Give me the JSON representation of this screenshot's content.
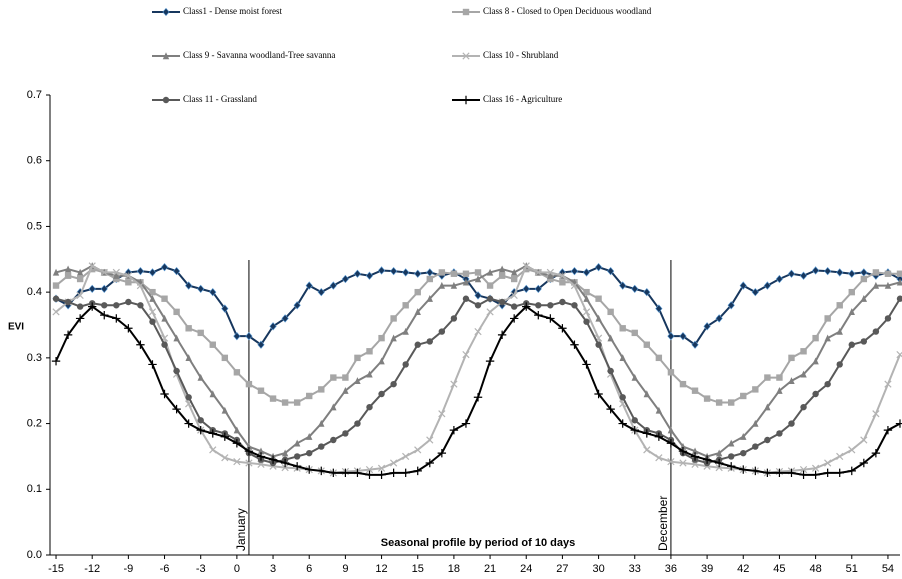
{
  "chart_data": {
    "type": "line",
    "ylabel": "EVI",
    "xlabel": "Seasonal profile by period  of 10 days",
    "annotations": [
      {
        "text": "January",
        "x": 1
      },
      {
        "text": "December",
        "x": 36
      }
    ],
    "xlim": [
      -15.5,
      55
    ],
    "ylim": [
      0,
      0.7
    ],
    "xticks": [
      -15,
      -12,
      -9,
      -6,
      -3,
      0,
      3,
      6,
      9,
      12,
      15,
      18,
      21,
      24,
      27,
      30,
      33,
      36,
      39,
      42,
      45,
      48,
      51,
      54
    ],
    "yticks": [
      {
        "value": 0,
        "label": "0.0"
      },
      0.1,
      0.2,
      0.3,
      0.4,
      0.5,
      0.6,
      0.7
    ],
    "grid": false,
    "x": [
      -15,
      -14,
      -13,
      -12,
      -11,
      -10,
      -9,
      -8,
      -7,
      -6,
      -5,
      -4,
      -3,
      -2,
      -1,
      0,
      1,
      2,
      3,
      4,
      5,
      6,
      7,
      8,
      9,
      10,
      11,
      12,
      13,
      14,
      15,
      16,
      17,
      18,
      19,
      20,
      21,
      22,
      23,
      24,
      25,
      26,
      27,
      28,
      29,
      30,
      31,
      32,
      33,
      34,
      35,
      36,
      37,
      38,
      39,
      40,
      41,
      42,
      43,
      44,
      45,
      46,
      47,
      48,
      49,
      50,
      51,
      52,
      53,
      54,
      55
    ],
    "series": [
      {
        "name": "Class1 - Dense moist forest",
        "color": "#17375e",
        "marker": "diamond",
        "values": [
          0.39,
          0.38,
          0.4,
          0.405,
          0.405,
          0.42,
          0.43,
          0.432,
          0.43,
          0.438,
          0.432,
          0.41,
          0.405,
          0.4,
          0.375,
          0.333,
          0.333,
          0.32,
          0.348,
          0.36,
          0.38,
          0.41,
          0.4,
          0.41,
          0.42,
          0.428,
          0.425,
          0.433,
          0.432,
          0.43,
          0.428,
          0.43,
          0.425,
          0.43,
          0.42,
          0.395,
          0.39,
          0.38,
          0.4,
          0.405,
          0.405,
          0.42,
          0.43,
          0.432,
          0.43,
          0.438,
          0.432,
          0.41,
          0.405,
          0.4,
          0.375,
          0.333,
          0.333,
          0.32,
          0.348,
          0.36,
          0.38,
          0.41,
          0.4,
          0.41,
          0.42,
          0.428,
          0.425,
          0.433,
          0.432,
          0.43,
          0.428,
          0.43,
          0.425,
          0.43,
          0.42
        ]
      },
      {
        "name": "Class 8 - Closed to Open Deciduous woodland",
        "color": "#a6a6a6",
        "marker": "square",
        "values": [
          0.41,
          0.425,
          0.42,
          0.435,
          0.43,
          0.42,
          0.415,
          0.415,
          0.4,
          0.39,
          0.37,
          0.345,
          0.338,
          0.32,
          0.3,
          0.278,
          0.26,
          0.25,
          0.238,
          0.232,
          0.232,
          0.242,
          0.252,
          0.27,
          0.27,
          0.3,
          0.31,
          0.33,
          0.36,
          0.38,
          0.4,
          0.42,
          0.43,
          0.428,
          0.428,
          0.43,
          0.41,
          0.425,
          0.42,
          0.435,
          0.43,
          0.42,
          0.415,
          0.415,
          0.4,
          0.39,
          0.37,
          0.345,
          0.338,
          0.32,
          0.3,
          0.278,
          0.26,
          0.25,
          0.238,
          0.232,
          0.232,
          0.242,
          0.252,
          0.27,
          0.27,
          0.3,
          0.31,
          0.33,
          0.36,
          0.38,
          0.4,
          0.42,
          0.43,
          0.428,
          0.428
        ]
      },
      {
        "name": "Class 9 - Savanna woodland-Tree savanna",
        "color": "#7f7f7f",
        "marker": "triangle",
        "values": [
          0.43,
          0.435,
          0.43,
          0.44,
          0.43,
          0.425,
          0.425,
          0.415,
          0.39,
          0.36,
          0.33,
          0.3,
          0.27,
          0.245,
          0.22,
          0.19,
          0.165,
          0.158,
          0.15,
          0.155,
          0.17,
          0.18,
          0.2,
          0.225,
          0.25,
          0.265,
          0.275,
          0.295,
          0.33,
          0.34,
          0.37,
          0.39,
          0.41,
          0.41,
          0.415,
          0.42,
          0.43,
          0.435,
          0.43,
          0.44,
          0.43,
          0.425,
          0.425,
          0.415,
          0.39,
          0.36,
          0.33,
          0.3,
          0.27,
          0.245,
          0.22,
          0.19,
          0.165,
          0.158,
          0.15,
          0.155,
          0.17,
          0.18,
          0.2,
          0.225,
          0.25,
          0.265,
          0.275,
          0.295,
          0.33,
          0.34,
          0.37,
          0.39,
          0.41,
          0.41,
          0.415
        ]
      },
      {
        "name": "Class 10 - Shrubland",
        "color": "#b3b3b3",
        "marker": "cross",
        "values": [
          0.37,
          0.385,
          0.395,
          0.44,
          0.43,
          0.43,
          0.425,
          0.41,
          0.37,
          0.33,
          0.275,
          0.23,
          0.19,
          0.16,
          0.148,
          0.142,
          0.14,
          0.138,
          0.135,
          0.133,
          0.132,
          0.13,
          0.128,
          0.125,
          0.127,
          0.128,
          0.13,
          0.132,
          0.14,
          0.15,
          0.16,
          0.175,
          0.215,
          0.26,
          0.305,
          0.34,
          0.37,
          0.385,
          0.395,
          0.44,
          0.43,
          0.43,
          0.425,
          0.41,
          0.37,
          0.33,
          0.275,
          0.23,
          0.19,
          0.16,
          0.148,
          0.142,
          0.14,
          0.138,
          0.135,
          0.133,
          0.132,
          0.13,
          0.128,
          0.125,
          0.127,
          0.128,
          0.13,
          0.132,
          0.14,
          0.15,
          0.16,
          0.175,
          0.215,
          0.26,
          0.305
        ]
      },
      {
        "name": "Class 11 - Grassland",
        "color": "#595959",
        "marker": "circle",
        "values": [
          0.39,
          0.385,
          0.378,
          0.383,
          0.38,
          0.38,
          0.385,
          0.38,
          0.355,
          0.32,
          0.28,
          0.24,
          0.205,
          0.19,
          0.185,
          0.175,
          0.155,
          0.145,
          0.14,
          0.145,
          0.15,
          0.155,
          0.165,
          0.175,
          0.185,
          0.2,
          0.225,
          0.245,
          0.26,
          0.29,
          0.32,
          0.325,
          0.34,
          0.36,
          0.39,
          0.38,
          0.39,
          0.385,
          0.378,
          0.383,
          0.38,
          0.38,
          0.385,
          0.38,
          0.355,
          0.32,
          0.28,
          0.24,
          0.205,
          0.19,
          0.185,
          0.175,
          0.155,
          0.145,
          0.14,
          0.145,
          0.15,
          0.155,
          0.165,
          0.175,
          0.185,
          0.2,
          0.225,
          0.245,
          0.26,
          0.29,
          0.32,
          0.325,
          0.34,
          0.36,
          0.39
        ]
      },
      {
        "name": "Class 16 - Agriculture",
        "color": "#000000",
        "marker": "plus",
        "values": [
          0.295,
          0.335,
          0.36,
          0.378,
          0.365,
          0.36,
          0.345,
          0.32,
          0.29,
          0.245,
          0.222,
          0.2,
          0.19,
          0.185,
          0.18,
          0.17,
          0.158,
          0.15,
          0.145,
          0.14,
          0.135,
          0.13,
          0.128,
          0.125,
          0.125,
          0.125,
          0.122,
          0.122,
          0.125,
          0.125,
          0.128,
          0.14,
          0.155,
          0.19,
          0.2,
          0.24,
          0.295,
          0.335,
          0.36,
          0.378,
          0.365,
          0.36,
          0.345,
          0.32,
          0.29,
          0.245,
          0.222,
          0.2,
          0.19,
          0.185,
          0.18,
          0.17,
          0.158,
          0.15,
          0.145,
          0.14,
          0.135,
          0.13,
          0.128,
          0.125,
          0.125,
          0.125,
          0.122,
          0.122,
          0.125,
          0.125,
          0.128,
          0.14,
          0.155,
          0.19,
          0.2
        ]
      }
    ]
  }
}
